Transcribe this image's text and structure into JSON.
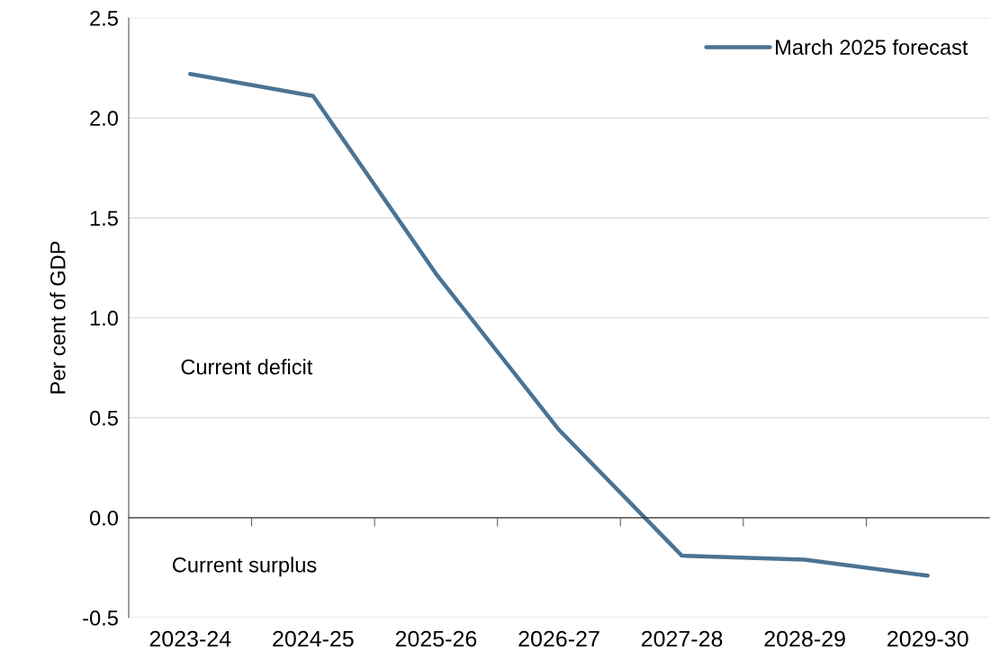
{
  "chart_data": {
    "type": "line",
    "ylabel": "Per cent of GDP",
    "categories": [
      "2023-24",
      "2024-25",
      "2025-26",
      "2026-27",
      "2027-28",
      "2028-29",
      "2029-30"
    ],
    "series": [
      {
        "name": "March 2025 forecast",
        "color": "#4b7393",
        "values": [
          2.22,
          2.11,
          1.22,
          0.44,
          -0.19,
          -0.21,
          -0.29
        ]
      }
    ],
    "ylim": [
      -0.5,
      2.5
    ],
    "yticks": [
      {
        "value": -0.5,
        "label": "-0.5"
      },
      {
        "value": 0,
        "label": "0.0"
      },
      {
        "value": 0.5,
        "label": "0.5"
      },
      {
        "value": 1,
        "label": "1.0"
      },
      {
        "value": 1.5,
        "label": "1.5"
      },
      {
        "value": 2,
        "label": "2.0"
      },
      {
        "value": 2.5,
        "label": "2.5"
      }
    ],
    "grid": "y",
    "legend": "top right",
    "marker": "none",
    "line_style": "solid",
    "annotations": [
      "Current deficit",
      "Current surplus"
    ]
  }
}
